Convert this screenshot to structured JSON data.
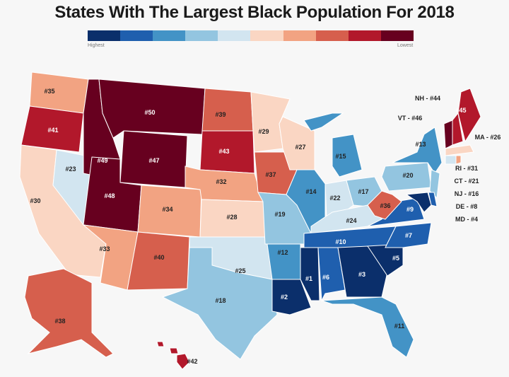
{
  "title": "States With The Largest Black Population For 2018",
  "legend": {
    "high_label": "Highest",
    "low_label": "Lowest",
    "colors": [
      "#0b2f6b",
      "#1f5fae",
      "#4393c6",
      "#93c5e0",
      "#d2e5f0",
      "#fad6c3",
      "#f2a382",
      "#d65f4d",
      "#b2182b",
      "#67001f"
    ]
  },
  "states": [
    {
      "abbr": "WA",
      "rank": 35
    },
    {
      "abbr": "OR",
      "rank": 41
    },
    {
      "abbr": "CA",
      "rank": 30
    },
    {
      "abbr": "NV",
      "rank": 23
    },
    {
      "abbr": "ID",
      "rank": 49
    },
    {
      "abbr": "MT",
      "rank": 50
    },
    {
      "abbr": "WY",
      "rank": 47
    },
    {
      "abbr": "UT",
      "rank": 48
    },
    {
      "abbr": "CO",
      "rank": 34
    },
    {
      "abbr": "AZ",
      "rank": 33
    },
    {
      "abbr": "NM",
      "rank": 40
    },
    {
      "abbr": "ND",
      "rank": 39
    },
    {
      "abbr": "SD",
      "rank": 43
    },
    {
      "abbr": "NE",
      "rank": 32
    },
    {
      "abbr": "KS",
      "rank": 28
    },
    {
      "abbr": "OK",
      "rank": 25
    },
    {
      "abbr": "TX",
      "rank": 18
    },
    {
      "abbr": "MN",
      "rank": 29
    },
    {
      "abbr": "IA",
      "rank": 37
    },
    {
      "abbr": "MO",
      "rank": 19
    },
    {
      "abbr": "AR",
      "rank": 12
    },
    {
      "abbr": "LA",
      "rank": 2
    },
    {
      "abbr": "WI",
      "rank": 27
    },
    {
      "abbr": "IL",
      "rank": 14
    },
    {
      "abbr": "MI",
      "rank": 15
    },
    {
      "abbr": "IN",
      "rank": 22
    },
    {
      "abbr": "OH",
      "rank": 17
    },
    {
      "abbr": "KY",
      "rank": 24
    },
    {
      "abbr": "TN",
      "rank": 10
    },
    {
      "abbr": "MS",
      "rank": 1
    },
    {
      "abbr": "AL",
      "rank": 6
    },
    {
      "abbr": "GA",
      "rank": 3
    },
    {
      "abbr": "FL",
      "rank": 11
    },
    {
      "abbr": "SC",
      "rank": 5
    },
    {
      "abbr": "NC",
      "rank": 7
    },
    {
      "abbr": "VA",
      "rank": 9
    },
    {
      "abbr": "WV",
      "rank": 36
    },
    {
      "abbr": "PA",
      "rank": 20
    },
    {
      "abbr": "NY",
      "rank": 13
    },
    {
      "abbr": "ME",
      "rank": 45
    },
    {
      "abbr": "AK",
      "rank": 38
    },
    {
      "abbr": "HI",
      "rank": 42
    },
    {
      "abbr": "NH",
      "rank": 44,
      "callout": "NH - #44"
    },
    {
      "abbr": "VT",
      "rank": 46,
      "callout": "VT - #46"
    },
    {
      "abbr": "MA",
      "rank": 26,
      "callout": "MA - #26"
    },
    {
      "abbr": "RI",
      "rank": 31,
      "callout": "RI - #31"
    },
    {
      "abbr": "CT",
      "rank": 21,
      "callout": "CT - #21"
    },
    {
      "abbr": "NJ",
      "rank": 16,
      "callout": "NJ - #16"
    },
    {
      "abbr": "DE",
      "rank": 8,
      "callout": "DE - #8"
    },
    {
      "abbr": "MD",
      "rank": 4,
      "callout": "MD - #4"
    }
  ]
}
